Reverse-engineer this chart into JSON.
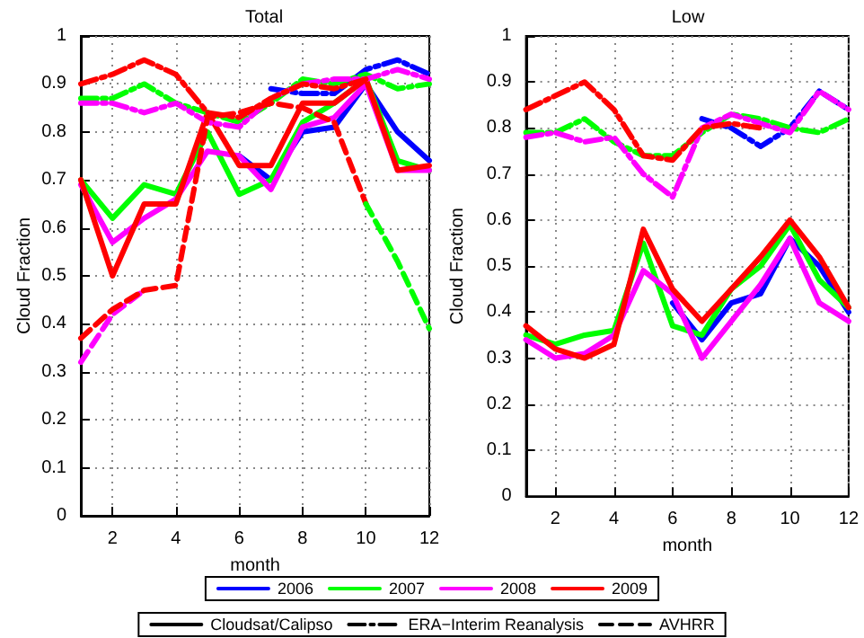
{
  "chart_data": [
    {
      "type": "line",
      "title": "Total",
      "xlabel": "month",
      "ylabel": "Cloud Fraction",
      "x": [
        1,
        2,
        3,
        4,
        5,
        6,
        7,
        8,
        9,
        10,
        11,
        12
      ],
      "xlim": [
        1,
        12
      ],
      "xticks": [
        2,
        4,
        6,
        8,
        10,
        12
      ],
      "ylim": [
        0,
        1
      ],
      "yticks": [
        0,
        0.1,
        0.2,
        0.3,
        0.4,
        0.5,
        0.6,
        0.7,
        0.8,
        0.9,
        1
      ],
      "grid": true,
      "marker": "none",
      "legend": "bottom",
      "series": [
        {
          "name": "2006",
          "color": "#0000ff",
          "line_style": "solid",
          "values": [
            null,
            null,
            null,
            null,
            null,
            0.75,
            0.7,
            0.8,
            0.81,
            0.9,
            0.8,
            0.74
          ]
        },
        {
          "name": "2007",
          "color": "#00ff00",
          "line_style": "solid",
          "values": [
            0.7,
            0.62,
            0.69,
            0.67,
            0.8,
            0.67,
            0.7,
            0.82,
            0.86,
            0.91,
            0.74,
            0.72
          ]
        },
        {
          "name": "2008",
          "color": "#ff00ff",
          "line_style": "solid",
          "values": [
            0.69,
            0.57,
            0.62,
            0.66,
            0.76,
            0.75,
            0.68,
            0.81,
            0.83,
            0.9,
            0.72,
            0.72
          ]
        },
        {
          "name": "2009",
          "color": "#ff0000",
          "line_style": "solid",
          "values": [
            0.7,
            0.5,
            0.65,
            0.65,
            0.84,
            0.73,
            0.73,
            0.86,
            0.86,
            0.91,
            0.72,
            0.73
          ]
        },
        {
          "color": "#0000ff",
          "line_style": "dashdot",
          "values": [
            null,
            null,
            null,
            null,
            null,
            null,
            0.89,
            0.88,
            0.88,
            0.93,
            0.95,
            0.92
          ]
        },
        {
          "color": "#00ff00",
          "line_style": "dashdot",
          "values": [
            0.87,
            0.87,
            0.9,
            0.86,
            0.84,
            0.82,
            0.86,
            0.91,
            0.9,
            0.92,
            0.89,
            0.9
          ]
        },
        {
          "color": "#ff00ff",
          "line_style": "dashdot",
          "values": [
            0.86,
            0.86,
            0.84,
            0.86,
            0.82,
            0.81,
            0.87,
            0.9,
            0.91,
            0.91,
            0.93,
            0.91
          ]
        },
        {
          "color": "#ff0000",
          "line_style": "dashdot",
          "values": [
            0.9,
            0.92,
            0.95,
            0.92,
            0.84,
            0.83,
            0.87,
            0.9,
            0.89,
            0.91,
            null,
            null
          ]
        },
        {
          "color": "#ff00ff",
          "line_style": "dashed",
          "values": [
            0.32,
            0.42,
            0.47,
            null,
            null,
            null,
            null,
            null,
            null,
            null,
            null,
            null
          ]
        },
        {
          "color": "#ff0000",
          "line_style": "dashed",
          "values": [
            0.37,
            0.43,
            0.47,
            0.48,
            0.83,
            0.84,
            0.86,
            0.85,
            0.82,
            0.65,
            null,
            null
          ]
        },
        {
          "color": "#00ff00",
          "line_style": "dashed",
          "values": [
            null,
            null,
            null,
            null,
            null,
            null,
            null,
            null,
            null,
            0.65,
            0.53,
            0.39
          ]
        },
        {
          "name": "Cloudsat/Calipso",
          "color": "#000000",
          "line_style": "solid",
          "values": [
            null,
            null,
            null,
            null,
            null,
            null,
            null,
            null,
            null,
            null,
            null,
            null
          ]
        },
        {
          "name": "ERA−Interim Reanalysis",
          "color": "#000000",
          "line_style": "dashdot",
          "values": [
            null,
            null,
            null,
            null,
            null,
            null,
            null,
            null,
            null,
            null,
            null,
            null
          ]
        },
        {
          "name": "AVHRR",
          "color": "#000000",
          "line_style": "dashed",
          "values": [
            null,
            null,
            null,
            null,
            null,
            null,
            null,
            null,
            null,
            null,
            null,
            null
          ]
        }
      ]
    },
    {
      "type": "line",
      "title": "Low",
      "xlabel": "month",
      "ylabel": "Cloud Fraction",
      "x": [
        1,
        2,
        3,
        4,
        5,
        6,
        7,
        8,
        9,
        10,
        11,
        12
      ],
      "xlim": [
        1,
        12
      ],
      "xticks": [
        2,
        4,
        6,
        8,
        10,
        12
      ],
      "ylim": [
        0,
        1
      ],
      "yticks": [
        0,
        0.1,
        0.2,
        0.3,
        0.4,
        0.5,
        0.6,
        0.7,
        0.8,
        0.9,
        1
      ],
      "grid": true,
      "marker": "none",
      "series": [
        {
          "color": "#0000ff",
          "line_style": "solid",
          "values": [
            null,
            null,
            null,
            null,
            null,
            0.42,
            0.34,
            0.42,
            0.44,
            0.56,
            0.5,
            0.4
          ]
        },
        {
          "color": "#00ff00",
          "line_style": "solid",
          "values": [
            0.35,
            0.33,
            0.35,
            0.36,
            0.55,
            0.37,
            0.35,
            0.45,
            0.5,
            0.59,
            0.47,
            0.41
          ]
        },
        {
          "color": "#ff00ff",
          "line_style": "solid",
          "values": [
            0.34,
            0.3,
            0.31,
            0.35,
            0.49,
            0.44,
            0.3,
            0.38,
            0.46,
            0.56,
            0.42,
            0.38
          ]
        },
        {
          "color": "#ff0000",
          "line_style": "solid",
          "values": [
            0.37,
            0.32,
            0.3,
            0.33,
            0.58,
            0.45,
            0.38,
            0.45,
            0.52,
            0.6,
            0.52,
            0.41
          ]
        },
        {
          "color": "#0000ff",
          "line_style": "dashdot",
          "values": [
            null,
            null,
            null,
            null,
            null,
            null,
            0.82,
            0.8,
            0.76,
            0.8,
            0.88,
            0.84
          ]
        },
        {
          "color": "#00ff00",
          "line_style": "dashdot",
          "values": [
            0.79,
            0.79,
            0.82,
            0.77,
            0.74,
            0.74,
            0.79,
            0.83,
            0.82,
            0.8,
            0.79,
            0.82
          ]
        },
        {
          "color": "#ff00ff",
          "line_style": "dashdot",
          "values": [
            0.78,
            0.79,
            0.77,
            0.78,
            0.7,
            0.65,
            0.8,
            0.83,
            0.81,
            0.79,
            0.88,
            0.84
          ]
        },
        {
          "color": "#ff0000",
          "line_style": "dashdot",
          "values": [
            0.84,
            0.87,
            0.9,
            0.84,
            0.74,
            0.73,
            0.8,
            0.81,
            0.8,
            null,
            null,
            null
          ]
        }
      ]
    }
  ]
}
